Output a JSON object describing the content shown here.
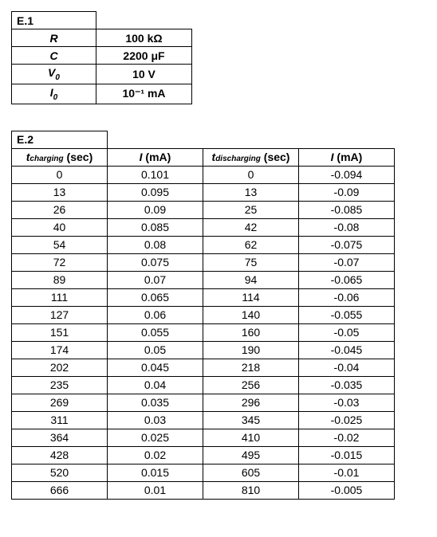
{
  "e1": {
    "title": "E.1",
    "rows": [
      {
        "label_html": "R",
        "value": "100 kΩ"
      },
      {
        "label_html": "C",
        "value": "2200 μF"
      },
      {
        "label_html": "V<sub>0</sub>",
        "value": "10 V"
      },
      {
        "label_html": "I<sub>0</sub>",
        "value": "10⁻¹ mA"
      }
    ]
  },
  "e2": {
    "title": "E.2",
    "headers": [
      "<span class='ital'>t</span><span class='sub'>charging</span> (sec)",
      "<span class='ital'>I</span> (mA)",
      "<span class='ital'>t</span><span class='sub'>discharging</span> (sec)",
      "<span class='ital'>I</span> (mA)"
    ],
    "rows": [
      [
        "0",
        "0.101",
        "0",
        "-0.094"
      ],
      [
        "13",
        "0.095",
        "13",
        "-0.09"
      ],
      [
        "26",
        "0.09",
        "25",
        "-0.085"
      ],
      [
        "40",
        "0.085",
        "42",
        "-0.08"
      ],
      [
        "54",
        "0.08",
        "62",
        "-0.075"
      ],
      [
        "72",
        "0.075",
        "75",
        "-0.07"
      ],
      [
        "89",
        "0.07",
        "94",
        "-0.065"
      ],
      [
        "111",
        "0.065",
        "114",
        "-0.06"
      ],
      [
        "127",
        "0.06",
        "140",
        "-0.055"
      ],
      [
        "151",
        "0.055",
        "160",
        "-0.05"
      ],
      [
        "174",
        "0.05",
        "190",
        "-0.045"
      ],
      [
        "202",
        "0.045",
        "218",
        "-0.04"
      ],
      [
        "235",
        "0.04",
        "256",
        "-0.035"
      ],
      [
        "269",
        "0.035",
        "296",
        "-0.03"
      ],
      [
        "311",
        "0.03",
        "345",
        "-0.025"
      ],
      [
        "364",
        "0.025",
        "410",
        "-0.02"
      ],
      [
        "428",
        "0.02",
        "495",
        "-0.015"
      ],
      [
        "520",
        "0.015",
        "605",
        "-0.01"
      ],
      [
        "666",
        "0.01",
        "810",
        "-0.005"
      ]
    ]
  }
}
